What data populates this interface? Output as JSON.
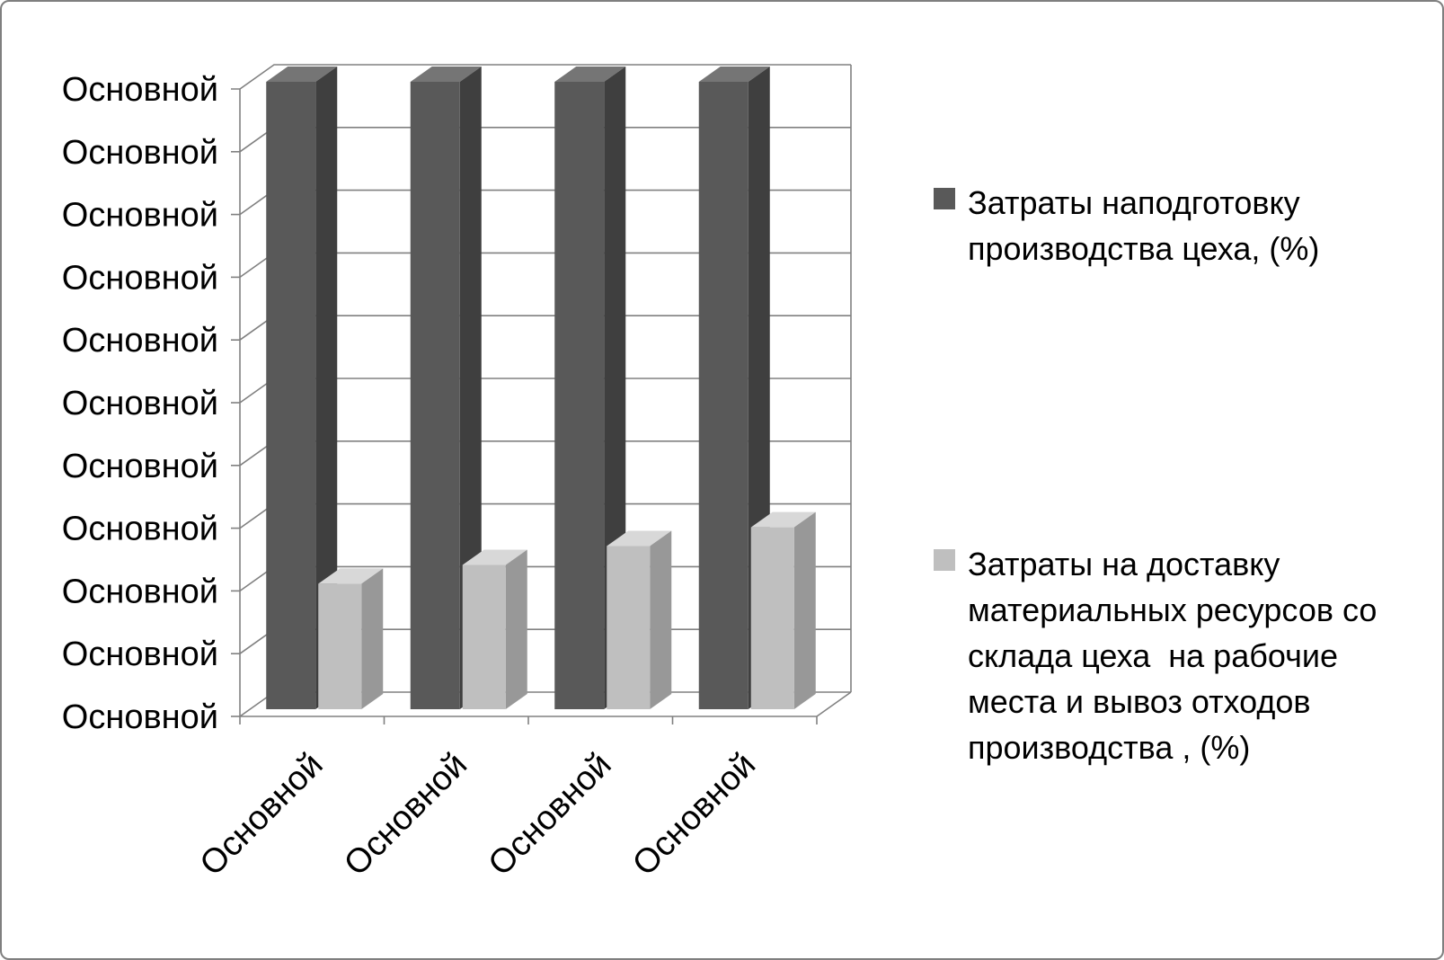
{
  "frame": {
    "background": "#ffffff",
    "border_color": "#7f7f7f"
  },
  "chart_data": {
    "type": "bar",
    "projection": "3d",
    "title": "",
    "xlabel": "",
    "ylabel": "",
    "grid": true,
    "legend_position": "right",
    "axis_color": "#808080",
    "text_color": "#000000",
    "ylim": [
      0,
      100
    ],
    "y_tick_labels": [
      "Основной",
      "Основной",
      "Основной",
      "Основной",
      "Основной",
      "Основной",
      "Основной",
      "Основной",
      "Основной",
      "Основной",
      "Основной"
    ],
    "categories": [
      "Основной",
      "Основной",
      "Основной",
      "Основной"
    ],
    "series": [
      {
        "name": "Затраты наподготовку производства цеха, (%)",
        "values": [
          100,
          100,
          100,
          100
        ],
        "color": {
          "front": "#595959",
          "top": "#757575",
          "side": "#3f3f3f"
        }
      },
      {
        "name": "Затраты на доставку материальных ресурсов со склада цеха  на рабочие места и вывоз отходов производства , (%)",
        "values": [
          20,
          23,
          26,
          29
        ],
        "color": {
          "front": "#bfbfbf",
          "top": "#d8d8d8",
          "side": "#989898"
        }
      }
    ]
  }
}
